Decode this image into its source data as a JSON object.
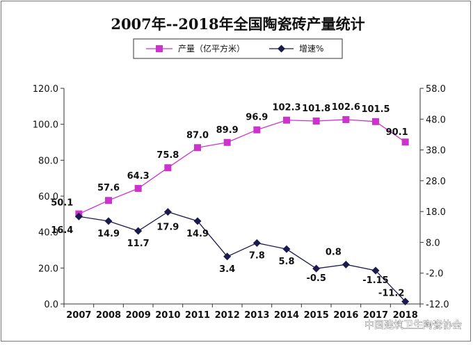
{
  "chart_data": {
    "type": "line",
    "title": "2007年--2018年全国陶瓷砖产量统计",
    "categories": [
      "2007",
      "2008",
      "2009",
      "2010",
      "2011",
      "2012",
      "2013",
      "2014",
      "2015",
      "2016",
      "2017",
      "2018"
    ],
    "series": [
      {
        "name": "产量（亿平方米）",
        "axis": "left",
        "color": "#cc33cc",
        "marker": "square",
        "values": [
          50.1,
          57.6,
          64.3,
          75.8,
          87.0,
          89.9,
          96.9,
          102.3,
          101.8,
          102.6,
          101.5,
          90.1
        ],
        "labels": [
          "50.1",
          "57.6",
          "64.3",
          "75.8",
          "87.0",
          "89.9",
          "96.9",
          "102.3",
          "101.8",
          "102.6",
          "101.5",
          "90.1"
        ]
      },
      {
        "name": "增速%",
        "axis": "right",
        "color": "#1a1a4d",
        "marker": "diamond",
        "values": [
          16.4,
          14.9,
          11.7,
          17.9,
          14.9,
          3.4,
          7.8,
          5.8,
          -0.5,
          0.8,
          -1.15,
          -11.2
        ],
        "labels": [
          "16.4",
          "14.9",
          "11.7",
          "17.9",
          "14.9",
          "3.4",
          "7.8",
          "5.8",
          "-0.5",
          "0.8",
          "-1.15",
          "-11.2"
        ]
      }
    ],
    "y_left": {
      "min": 0,
      "max": 120,
      "ticks": [
        "0.0",
        "20.0",
        "40.0",
        "60.0",
        "80.0",
        "100.0",
        "120.0"
      ]
    },
    "y_right": {
      "min": -12,
      "max": 58,
      "ticks": [
        "-12.0",
        "-2.0",
        "8.0",
        "18.0",
        "28.0",
        "38.0",
        "48.0",
        "58.0"
      ]
    },
    "grid": false,
    "legend": "top"
  },
  "watermark": "中国建筑卫生陶瓷协会"
}
